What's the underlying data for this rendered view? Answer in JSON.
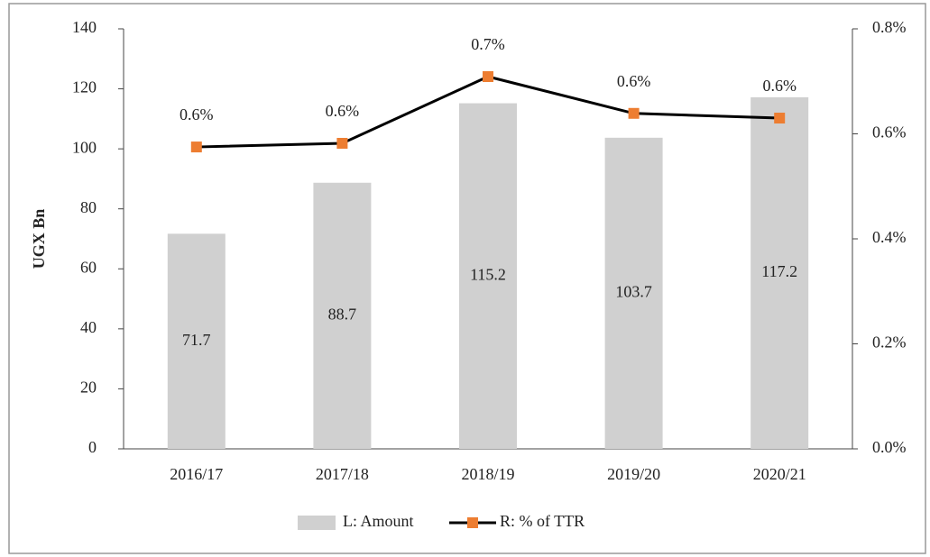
{
  "chart_data": {
    "type": "bar",
    "ylabel": "UGX Bn",
    "categories": [
      "2016/17",
      "2017/18",
      "2018/19",
      "2019/20",
      "2020/21"
    ],
    "series": [
      {
        "name": "L: Amount",
        "type": "bar",
        "color": "#d0d0d0",
        "values": [
          71.7,
          88.7,
          115.2,
          103.7,
          117.2
        ]
      },
      {
        "name": "R: % of TTR",
        "type": "line",
        "axis": "y2",
        "color": "#000000",
        "marker_color": "#ed7d31",
        "values": [
          0.575,
          0.582,
          0.709,
          0.639,
          0.63
        ],
        "value_labels": [
          "0.6%",
          "0.6%",
          "0.7%",
          "0.6%",
          "0.6%"
        ]
      }
    ],
    "ylim": [
      0,
      140
    ],
    "yticks": [
      0,
      20,
      40,
      60,
      80,
      100,
      120,
      140
    ],
    "y2lim": [
      0,
      0.8
    ],
    "y2ticks": [
      {
        "value": 0,
        "label": "0.0%"
      },
      {
        "value": 0.2,
        "label": "0.2%"
      },
      {
        "value": 0.4,
        "label": "0.4%"
      },
      {
        "value": 0.6,
        "label": "0.6%"
      },
      {
        "value": 0.8,
        "label": "0.8%"
      }
    ],
    "grid": false,
    "legend": "bottom"
  }
}
